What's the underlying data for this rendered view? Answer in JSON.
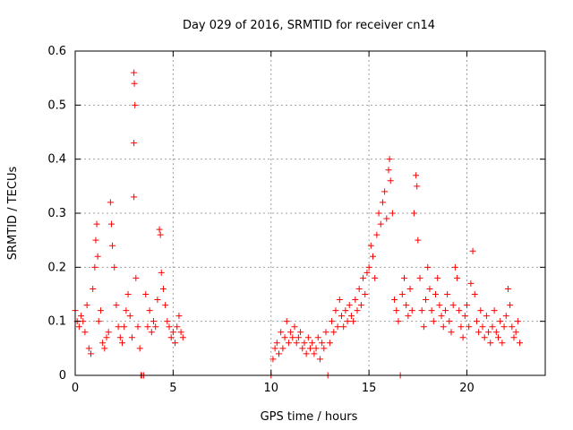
{
  "chart_data": {
    "type": "scatter",
    "title": "Day 029 of 2016, SRMTID for receiver cn14",
    "xlabel": "GPS time / hours",
    "ylabel": "SRMTID / TECUs",
    "xlim": [
      0,
      24
    ],
    "ylim": [
      0,
      0.6
    ],
    "xticks": [
      0,
      5,
      10,
      15,
      20
    ],
    "yticks": [
      0,
      0.1,
      0.2,
      0.3,
      0.4,
      0.5,
      0.6
    ],
    "xtick_labels": [
      "0",
      "5",
      "10",
      "15",
      "20"
    ],
    "ytick_labels": [
      "0",
      "0.1",
      "0.2",
      "0.3",
      "0.4",
      "0.5",
      "0.6"
    ],
    "grid": true,
    "marker": "+",
    "color": "#ff0000",
    "series": [
      {
        "name": "SRMTID",
        "points": [
          [
            0.0,
            0.12
          ],
          [
            0.1,
            0.1
          ],
          [
            0.2,
            0.09
          ],
          [
            0.3,
            0.11
          ],
          [
            0.4,
            0.1
          ],
          [
            0.5,
            0.08
          ],
          [
            0.6,
            0.13
          ],
          [
            0.7,
            0.05
          ],
          [
            0.8,
            0.04
          ],
          [
            0.9,
            0.16
          ],
          [
            1.0,
            0.2
          ],
          [
            1.05,
            0.25
          ],
          [
            1.1,
            0.28
          ],
          [
            1.15,
            0.22
          ],
          [
            1.2,
            0.1
          ],
          [
            1.3,
            0.12
          ],
          [
            1.4,
            0.06
          ],
          [
            1.5,
            0.05
          ],
          [
            1.6,
            0.07
          ],
          [
            1.7,
            0.08
          ],
          [
            1.8,
            0.32
          ],
          [
            1.85,
            0.28
          ],
          [
            1.9,
            0.24
          ],
          [
            2.0,
            0.2
          ],
          [
            2.1,
            0.13
          ],
          [
            2.2,
            0.09
          ],
          [
            2.3,
            0.07
          ],
          [
            2.4,
            0.06
          ],
          [
            2.5,
            0.09
          ],
          [
            2.6,
            0.12
          ],
          [
            2.7,
            0.15
          ],
          [
            2.8,
            0.11
          ],
          [
            2.9,
            0.07
          ],
          [
            3.0,
            0.56
          ],
          [
            3.02,
            0.54
          ],
          [
            3.05,
            0.5
          ],
          [
            3.0,
            0.43
          ],
          [
            3.0,
            0.33
          ],
          [
            3.1,
            0.18
          ],
          [
            3.2,
            0.09
          ],
          [
            3.3,
            0.05
          ],
          [
            3.35,
            0.0
          ],
          [
            3.4,
            0.0
          ],
          [
            3.5,
            0.0
          ],
          [
            3.6,
            0.15
          ],
          [
            3.7,
            0.09
          ],
          [
            3.8,
            0.12
          ],
          [
            3.9,
            0.08
          ],
          [
            4.0,
            0.1
          ],
          [
            4.1,
            0.09
          ],
          [
            4.2,
            0.14
          ],
          [
            4.3,
            0.27
          ],
          [
            4.35,
            0.26
          ],
          [
            4.4,
            0.19
          ],
          [
            4.5,
            0.16
          ],
          [
            4.6,
            0.13
          ],
          [
            4.7,
            0.1
          ],
          [
            4.8,
            0.09
          ],
          [
            4.9,
            0.07
          ],
          [
            5.0,
            0.08
          ],
          [
            5.1,
            0.06
          ],
          [
            5.2,
            0.09
          ],
          [
            5.3,
            0.11
          ],
          [
            5.4,
            0.08
          ],
          [
            5.5,
            0.07
          ],
          [
            10.0,
            0.0
          ],
          [
            10.1,
            0.03
          ],
          [
            10.2,
            0.05
          ],
          [
            10.3,
            0.06
          ],
          [
            10.4,
            0.04
          ],
          [
            10.5,
            0.08
          ],
          [
            10.6,
            0.05
          ],
          [
            10.7,
            0.07
          ],
          [
            10.8,
            0.1
          ],
          [
            10.9,
            0.06
          ],
          [
            11.0,
            0.08
          ],
          [
            11.1,
            0.07
          ],
          [
            11.2,
            0.09
          ],
          [
            11.3,
            0.06
          ],
          [
            11.4,
            0.07
          ],
          [
            11.5,
            0.08
          ],
          [
            11.6,
            0.05
          ],
          [
            11.7,
            0.06
          ],
          [
            11.8,
            0.04
          ],
          [
            11.9,
            0.07
          ],
          [
            12.0,
            0.05
          ],
          [
            12.1,
            0.06
          ],
          [
            12.2,
            0.04
          ],
          [
            12.3,
            0.05
          ],
          [
            12.4,
            0.07
          ],
          [
            12.5,
            0.03
          ],
          [
            12.6,
            0.06
          ],
          [
            12.7,
            0.05
          ],
          [
            12.8,
            0.08
          ],
          [
            12.9,
            0.0
          ],
          [
            13.0,
            0.06
          ],
          [
            13.1,
            0.1
          ],
          [
            13.2,
            0.08
          ],
          [
            13.3,
            0.12
          ],
          [
            13.4,
            0.09
          ],
          [
            13.5,
            0.14
          ],
          [
            13.6,
            0.11
          ],
          [
            13.7,
            0.09
          ],
          [
            13.8,
            0.12
          ],
          [
            13.9,
            0.1
          ],
          [
            14.0,
            0.13
          ],
          [
            14.1,
            0.11
          ],
          [
            14.2,
            0.1
          ],
          [
            14.3,
            0.14
          ],
          [
            14.4,
            0.12
          ],
          [
            14.5,
            0.16
          ],
          [
            14.6,
            0.13
          ],
          [
            14.7,
            0.18
          ],
          [
            14.8,
            0.15
          ],
          [
            14.9,
            0.19
          ],
          [
            15.0,
            0.2
          ],
          [
            15.1,
            0.24
          ],
          [
            15.2,
            0.22
          ],
          [
            15.3,
            0.18
          ],
          [
            15.4,
            0.26
          ],
          [
            15.5,
            0.3
          ],
          [
            15.6,
            0.28
          ],
          [
            15.7,
            0.32
          ],
          [
            15.8,
            0.34
          ],
          [
            15.9,
            0.29
          ],
          [
            16.0,
            0.38
          ],
          [
            16.05,
            0.4
          ],
          [
            16.1,
            0.36
          ],
          [
            16.2,
            0.3
          ],
          [
            16.3,
            0.14
          ],
          [
            16.4,
            0.12
          ],
          [
            16.5,
            0.1
          ],
          [
            16.6,
            0.0
          ],
          [
            16.7,
            0.15
          ],
          [
            16.8,
            0.18
          ],
          [
            16.9,
            0.13
          ],
          [
            17.0,
            0.11
          ],
          [
            17.1,
            0.16
          ],
          [
            17.2,
            0.12
          ],
          [
            17.3,
            0.3
          ],
          [
            17.4,
            0.37
          ],
          [
            17.45,
            0.35
          ],
          [
            17.5,
            0.25
          ],
          [
            17.6,
            0.18
          ],
          [
            17.7,
            0.12
          ],
          [
            17.8,
            0.09
          ],
          [
            17.9,
            0.14
          ],
          [
            18.0,
            0.2
          ],
          [
            18.1,
            0.16
          ],
          [
            18.2,
            0.12
          ],
          [
            18.3,
            0.1
          ],
          [
            18.4,
            0.15
          ],
          [
            18.5,
            0.18
          ],
          [
            18.6,
            0.13
          ],
          [
            18.7,
            0.11
          ],
          [
            18.8,
            0.09
          ],
          [
            18.9,
            0.12
          ],
          [
            19.0,
            0.15
          ],
          [
            19.1,
            0.1
          ],
          [
            19.2,
            0.08
          ],
          [
            19.3,
            0.13
          ],
          [
            19.4,
            0.2
          ],
          [
            19.5,
            0.18
          ],
          [
            19.6,
            0.12
          ],
          [
            19.7,
            0.09
          ],
          [
            19.8,
            0.07
          ],
          [
            19.9,
            0.11
          ],
          [
            20.0,
            0.13
          ],
          [
            20.1,
            0.09
          ],
          [
            20.2,
            0.17
          ],
          [
            20.3,
            0.23
          ],
          [
            20.4,
            0.15
          ],
          [
            20.5,
            0.1
          ],
          [
            20.6,
            0.08
          ],
          [
            20.7,
            0.12
          ],
          [
            20.8,
            0.09
          ],
          [
            20.9,
            0.07
          ],
          [
            21.0,
            0.11
          ],
          [
            21.1,
            0.08
          ],
          [
            21.2,
            0.06
          ],
          [
            21.3,
            0.09
          ],
          [
            21.4,
            0.12
          ],
          [
            21.5,
            0.08
          ],
          [
            21.6,
            0.07
          ],
          [
            21.7,
            0.1
          ],
          [
            21.8,
            0.06
          ],
          [
            21.9,
            0.09
          ],
          [
            22.0,
            0.11
          ],
          [
            22.1,
            0.16
          ],
          [
            22.2,
            0.13
          ],
          [
            22.3,
            0.09
          ],
          [
            22.4,
            0.07
          ],
          [
            22.5,
            0.08
          ],
          [
            22.6,
            0.1
          ],
          [
            22.7,
            0.06
          ]
        ]
      }
    ]
  }
}
